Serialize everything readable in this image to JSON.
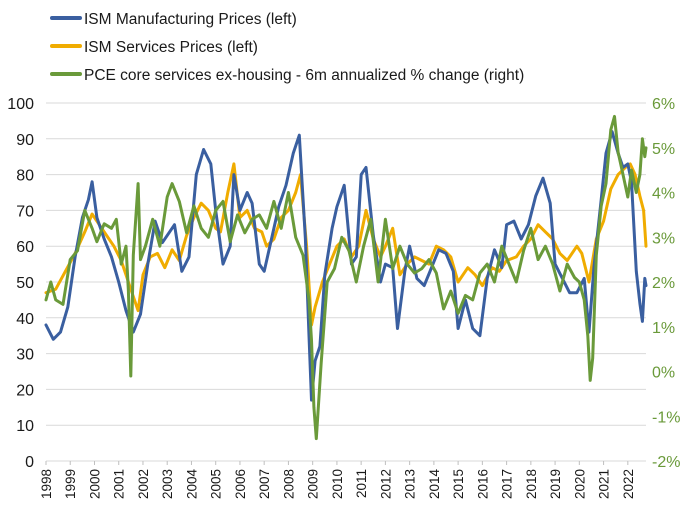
{
  "chart_data": {
    "type": "line",
    "title": "",
    "xlabel": "",
    "ylabel_left": "",
    "ylabel_right": "",
    "x_range": [
      1998.0,
      2022.75
    ],
    "ylim_left": [
      0,
      100
    ],
    "ylim_right": [
      -2,
      6
    ],
    "grid": "horizontal",
    "legend_position": "top-left",
    "x_ticks": [
      "1998",
      "1999",
      "2000",
      "2001",
      "2002",
      "2003",
      "2004",
      "2005",
      "2006",
      "2007",
      "2008",
      "2009",
      "2010",
      "2011",
      "2012",
      "2013",
      "2014",
      "2015",
      "2016",
      "2017",
      "2018",
      "2019",
      "2020",
      "2021",
      "2022"
    ],
    "y_ticks_left": [
      "0",
      "10",
      "20",
      "30",
      "40",
      "50",
      "60",
      "70",
      "80",
      "90",
      "100"
    ],
    "y_ticks_right": [
      "-2%",
      "-1%",
      "0%",
      "1%",
      "2%",
      "3%",
      "4%",
      "5%",
      "6%"
    ],
    "colors": {
      "manufacturing": "#3a5fa0",
      "services": "#f0ac00",
      "pce": "#6a9a3a",
      "right_axis_text": "#6a9a3a",
      "grid": "#d9d9d9"
    },
    "series": [
      {
        "name": "ISM Manufacturing Prices (left)",
        "axis": "left",
        "color": "#3a5fa0",
        "points": [
          [
            1998.0,
            38
          ],
          [
            1998.3,
            34
          ],
          [
            1998.6,
            36
          ],
          [
            1998.9,
            43
          ],
          [
            1999.2,
            57
          ],
          [
            1999.5,
            68
          ],
          [
            1999.75,
            73
          ],
          [
            1999.9,
            78
          ],
          [
            2000.1,
            68
          ],
          [
            2000.4,
            62
          ],
          [
            2000.7,
            57
          ],
          [
            2001.0,
            50
          ],
          [
            2001.3,
            42
          ],
          [
            2001.6,
            36
          ],
          [
            2001.9,
            41
          ],
          [
            2002.2,
            55
          ],
          [
            2002.5,
            67
          ],
          [
            2002.8,
            61
          ],
          [
            2003.1,
            64
          ],
          [
            2003.3,
            66
          ],
          [
            2003.6,
            53
          ],
          [
            2003.9,
            57
          ],
          [
            2004.2,
            80
          ],
          [
            2004.5,
            87
          ],
          [
            2004.8,
            83
          ],
          [
            2005.0,
            70
          ],
          [
            2005.3,
            55
          ],
          [
            2005.6,
            60
          ],
          [
            2005.75,
            80
          ],
          [
            2006.0,
            70
          ],
          [
            2006.3,
            75
          ],
          [
            2006.5,
            72
          ],
          [
            2006.8,
            55
          ],
          [
            2007.0,
            53
          ],
          [
            2007.3,
            62
          ],
          [
            2007.6,
            71
          ],
          [
            2007.9,
            77
          ],
          [
            2008.2,
            86
          ],
          [
            2008.45,
            91
          ],
          [
            2008.7,
            62
          ],
          [
            2008.85,
            35
          ],
          [
            2008.95,
            17
          ],
          [
            2009.1,
            28
          ],
          [
            2009.3,
            32
          ],
          [
            2009.5,
            52
          ],
          [
            2009.8,
            65
          ],
          [
            2010.0,
            71
          ],
          [
            2010.3,
            77
          ],
          [
            2010.6,
            55
          ],
          [
            2010.8,
            57
          ],
          [
            2011.0,
            80
          ],
          [
            2011.2,
            82
          ],
          [
            2011.5,
            63
          ],
          [
            2011.8,
            50
          ],
          [
            2012.0,
            55
          ],
          [
            2012.3,
            54
          ],
          [
            2012.5,
            37
          ],
          [
            2012.8,
            53
          ],
          [
            2013.0,
            60
          ],
          [
            2013.3,
            51
          ],
          [
            2013.6,
            49
          ],
          [
            2013.9,
            54
          ],
          [
            2014.2,
            59
          ],
          [
            2014.5,
            58
          ],
          [
            2014.8,
            53
          ],
          [
            2015.0,
            37
          ],
          [
            2015.3,
            45
          ],
          [
            2015.6,
            37
          ],
          [
            2015.9,
            35
          ],
          [
            2016.2,
            51
          ],
          [
            2016.5,
            59
          ],
          [
            2016.8,
            54
          ],
          [
            2017.0,
            66
          ],
          [
            2017.3,
            67
          ],
          [
            2017.6,
            62
          ],
          [
            2017.9,
            66
          ],
          [
            2018.2,
            74
          ],
          [
            2018.5,
            79
          ],
          [
            2018.8,
            72
          ],
          [
            2019.0,
            55
          ],
          [
            2019.3,
            51
          ],
          [
            2019.6,
            47
          ],
          [
            2019.9,
            47
          ],
          [
            2020.2,
            51
          ],
          [
            2020.4,
            36
          ],
          [
            2020.6,
            54
          ],
          [
            2020.9,
            73
          ],
          [
            2021.1,
            86
          ],
          [
            2021.35,
            92
          ],
          [
            2021.6,
            86
          ],
          [
            2021.8,
            82
          ],
          [
            2022.0,
            83
          ],
          [
            2022.15,
            78
          ],
          [
            2022.35,
            53
          ],
          [
            2022.5,
            44
          ],
          [
            2022.6,
            39
          ],
          [
            2022.7,
            51
          ],
          [
            2022.75,
            49
          ]
        ]
      },
      {
        "name": "ISM Services Prices (left)",
        "axis": "left",
        "color": "#f0ac00",
        "points": [
          [
            1998.0,
            47
          ],
          [
            1998.4,
            48
          ],
          [
            1998.8,
            53
          ],
          [
            1999.2,
            58
          ],
          [
            1999.6,
            64
          ],
          [
            1999.9,
            69
          ],
          [
            2000.2,
            66
          ],
          [
            2000.5,
            63
          ],
          [
            2000.8,
            60
          ],
          [
            2001.1,
            56
          ],
          [
            2001.5,
            48
          ],
          [
            2001.8,
            42
          ],
          [
            2002.0,
            52
          ],
          [
            2002.3,
            57
          ],
          [
            2002.6,
            58
          ],
          [
            2002.9,
            54
          ],
          [
            2003.2,
            59
          ],
          [
            2003.5,
            56
          ],
          [
            2003.8,
            63
          ],
          [
            2004.1,
            68
          ],
          [
            2004.4,
            72
          ],
          [
            2004.7,
            70
          ],
          [
            2005.0,
            65
          ],
          [
            2005.2,
            64
          ],
          [
            2005.5,
            75
          ],
          [
            2005.75,
            83
          ],
          [
            2006.0,
            68
          ],
          [
            2006.3,
            70
          ],
          [
            2006.6,
            65
          ],
          [
            2006.9,
            64
          ],
          [
            2007.1,
            60
          ],
          [
            2007.4,
            62
          ],
          [
            2007.7,
            68
          ],
          [
            2008.0,
            70
          ],
          [
            2008.3,
            75
          ],
          [
            2008.5,
            80
          ],
          [
            2008.75,
            60
          ],
          [
            2008.95,
            38
          ],
          [
            2009.1,
            43
          ],
          [
            2009.4,
            50
          ],
          [
            2009.7,
            55
          ],
          [
            2010.0,
            60
          ],
          [
            2010.3,
            62
          ],
          [
            2010.6,
            57
          ],
          [
            2010.9,
            60
          ],
          [
            2011.2,
            70
          ],
          [
            2011.5,
            62
          ],
          [
            2011.8,
            57
          ],
          [
            2012.0,
            60
          ],
          [
            2012.3,
            65
          ],
          [
            2012.6,
            52
          ],
          [
            2012.9,
            55
          ],
          [
            2013.2,
            57
          ],
          [
            2013.5,
            56
          ],
          [
            2013.8,
            55
          ],
          [
            2014.1,
            60
          ],
          [
            2014.4,
            59
          ],
          [
            2014.7,
            57
          ],
          [
            2015.0,
            50
          ],
          [
            2015.4,
            54
          ],
          [
            2015.7,
            52
          ],
          [
            2016.0,
            49
          ],
          [
            2016.4,
            54
          ],
          [
            2016.7,
            53
          ],
          [
            2017.0,
            56
          ],
          [
            2017.4,
            57
          ],
          [
            2017.7,
            60
          ],
          [
            2018.0,
            62
          ],
          [
            2018.3,
            66
          ],
          [
            2018.6,
            64
          ],
          [
            2018.9,
            62
          ],
          [
            2019.2,
            58
          ],
          [
            2019.5,
            56
          ],
          [
            2019.9,
            60
          ],
          [
            2020.1,
            58
          ],
          [
            2020.4,
            50
          ],
          [
            2020.7,
            62
          ],
          [
            2021.0,
            67
          ],
          [
            2021.3,
            76
          ],
          [
            2021.6,
            80
          ],
          [
            2021.9,
            82
          ],
          [
            2022.1,
            83
          ],
          [
            2022.3,
            80
          ],
          [
            2022.5,
            74
          ],
          [
            2022.65,
            70
          ],
          [
            2022.75,
            60
          ]
        ]
      },
      {
        "name": "PCE core services ex-housing - 6m annualized % change (right)",
        "axis": "right",
        "color": "#6a9a3a",
        "points": [
          [
            1998.0,
            1.6
          ],
          [
            1998.2,
            2.0
          ],
          [
            1998.4,
            1.6
          ],
          [
            1998.7,
            1.5
          ],
          [
            1999.0,
            2.5
          ],
          [
            1999.3,
            2.7
          ],
          [
            1999.6,
            3.6
          ],
          [
            1999.9,
            3.2
          ],
          [
            2000.1,
            2.9
          ],
          [
            2000.4,
            3.3
          ],
          [
            2000.7,
            3.2
          ],
          [
            2000.9,
            3.4
          ],
          [
            2001.1,
            2.4
          ],
          [
            2001.3,
            2.8
          ],
          [
            2001.4,
            1.8
          ],
          [
            2001.5,
            -0.1
          ],
          [
            2001.6,
            2.6
          ],
          [
            2001.8,
            4.2
          ],
          [
            2001.9,
            2.5
          ],
          [
            2002.1,
            2.8
          ],
          [
            2002.4,
            3.4
          ],
          [
            2002.7,
            2.8
          ],
          [
            2003.0,
            3.9
          ],
          [
            2003.2,
            4.2
          ],
          [
            2003.5,
            3.8
          ],
          [
            2003.8,
            3.1
          ],
          [
            2004.1,
            3.7
          ],
          [
            2004.4,
            3.2
          ],
          [
            2004.7,
            3.0
          ],
          [
            2005.0,
            3.6
          ],
          [
            2005.3,
            3.8
          ],
          [
            2005.6,
            2.9
          ],
          [
            2005.9,
            3.5
          ],
          [
            2006.2,
            3.1
          ],
          [
            2006.5,
            3.4
          ],
          [
            2006.8,
            3.5
          ],
          [
            2007.1,
            3.2
          ],
          [
            2007.4,
            3.8
          ],
          [
            2007.7,
            3.2
          ],
          [
            2008.0,
            4.0
          ],
          [
            2008.3,
            3.0
          ],
          [
            2008.6,
            2.6
          ],
          [
            2008.85,
            1.6
          ],
          [
            2008.95,
            0.7
          ],
          [
            2009.05,
            -0.8
          ],
          [
            2009.15,
            -1.5
          ],
          [
            2009.35,
            0.2
          ],
          [
            2009.6,
            2.0
          ],
          [
            2009.9,
            2.3
          ],
          [
            2010.2,
            3.0
          ],
          [
            2010.5,
            2.7
          ],
          [
            2010.8,
            2.0
          ],
          [
            2011.1,
            2.8
          ],
          [
            2011.4,
            3.4
          ],
          [
            2011.7,
            2.0
          ],
          [
            2012.0,
            3.4
          ],
          [
            2012.3,
            2.3
          ],
          [
            2012.6,
            2.8
          ],
          [
            2012.9,
            2.4
          ],
          [
            2013.2,
            2.2
          ],
          [
            2013.5,
            2.3
          ],
          [
            2013.8,
            2.5
          ],
          [
            2014.1,
            2.2
          ],
          [
            2014.4,
            1.4
          ],
          [
            2014.7,
            1.8
          ],
          [
            2015.0,
            1.3
          ],
          [
            2015.3,
            1.7
          ],
          [
            2015.6,
            1.6
          ],
          [
            2015.9,
            2.2
          ],
          [
            2016.2,
            2.4
          ],
          [
            2016.5,
            2.0
          ],
          [
            2016.8,
            2.8
          ],
          [
            2017.1,
            2.4
          ],
          [
            2017.4,
            2.0
          ],
          [
            2017.7,
            2.7
          ],
          [
            2018.0,
            3.2
          ],
          [
            2018.3,
            2.5
          ],
          [
            2018.6,
            2.8
          ],
          [
            2018.9,
            2.4
          ],
          [
            2019.2,
            1.8
          ],
          [
            2019.5,
            2.4
          ],
          [
            2019.8,
            2.1
          ],
          [
            2020.0,
            2.0
          ],
          [
            2020.2,
            1.6
          ],
          [
            2020.35,
            0.8
          ],
          [
            2020.45,
            -0.2
          ],
          [
            2020.55,
            0.3
          ],
          [
            2020.7,
            2.6
          ],
          [
            2020.9,
            3.7
          ],
          [
            2021.1,
            4.2
          ],
          [
            2021.3,
            5.4
          ],
          [
            2021.45,
            5.7
          ],
          [
            2021.6,
            4.9
          ],
          [
            2021.8,
            4.4
          ],
          [
            2022.0,
            3.9
          ],
          [
            2022.15,
            4.5
          ],
          [
            2022.35,
            4.0
          ],
          [
            2022.5,
            4.4
          ],
          [
            2022.6,
            5.2
          ],
          [
            2022.7,
            4.8
          ],
          [
            2022.75,
            5.0
          ]
        ]
      }
    ]
  }
}
